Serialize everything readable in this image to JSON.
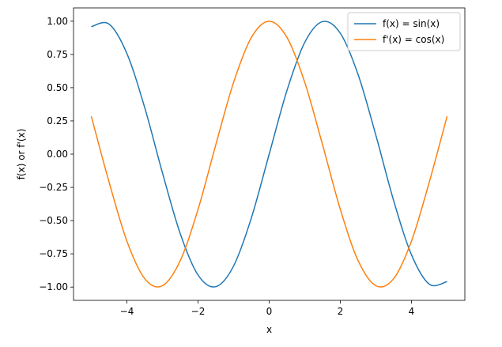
{
  "chart_data": {
    "type": "line",
    "title": "",
    "xlabel": "x",
    "ylabel": "f(x)  or  f'(x)",
    "xlim": [
      -5.5,
      5.5
    ],
    "ylim": [
      -1.1,
      1.1
    ],
    "x_ticks": [
      -4,
      -2,
      0,
      2,
      4
    ],
    "x_tick_labels": [
      "−4",
      "−2",
      "0",
      "2",
      "4"
    ],
    "y_ticks": [
      1.0,
      0.75,
      0.5,
      0.25,
      0.0,
      -0.25,
      -0.5,
      -0.75,
      -1.0
    ],
    "y_tick_labels": [
      "1.00",
      "0.75",
      "0.50",
      "0.25",
      "0.00",
      "−0.25",
      "−0.50",
      "−0.75",
      "−1.00"
    ],
    "grid": false,
    "legend_position": "top-right",
    "x": [
      -5.0,
      -4.5,
      -4.0,
      -3.5,
      -3.0,
      -2.5,
      -2.0,
      -1.5,
      -1.0,
      -0.5,
      0.0,
      0.5,
      1.0,
      1.5,
      2.0,
      2.5,
      3.0,
      3.5,
      4.0,
      4.5,
      5.0
    ],
    "series": [
      {
        "name": "f(x) = sin(x)",
        "color": "#1f77b4",
        "values": [
          0.959,
          0.978,
          0.757,
          0.351,
          -0.141,
          -0.598,
          -0.909,
          -0.997,
          -0.841,
          -0.479,
          0.0,
          0.479,
          0.841,
          0.997,
          0.909,
          0.598,
          0.141,
          -0.351,
          -0.757,
          -0.978,
          -0.959
        ]
      },
      {
        "name": "f'(x) = cos(x)",
        "color": "#ff7f0e",
        "values": [
          0.284,
          -0.211,
          -0.654,
          -0.936,
          -0.99,
          -0.801,
          -0.416,
          0.071,
          0.54,
          0.878,
          1.0,
          0.878,
          0.54,
          0.071,
          -0.416,
          -0.801,
          -0.99,
          -0.936,
          -0.654,
          -0.211,
          0.284
        ]
      }
    ]
  }
}
